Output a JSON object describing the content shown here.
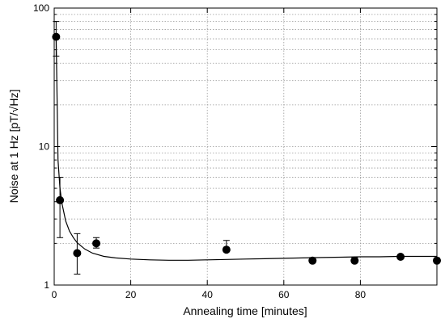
{
  "chart_data": {
    "type": "scatter",
    "title": "",
    "xlabel": "Annealing time [minutes]",
    "ylabel": "Noise at 1 Hz [pT/√Hz]",
    "xlim": [
      0,
      100
    ],
    "ylim": [
      1,
      100
    ],
    "yscale": "log",
    "grid": true,
    "legend": "none",
    "x_ticks": [
      0,
      20,
      40,
      60,
      80
    ],
    "x_tick_labels": [
      "0",
      "20",
      "40",
      "60",
      "80"
    ],
    "y_ticks": [
      1,
      10,
      100
    ],
    "y_tick_labels": [
      "1",
      "10",
      "100"
    ],
    "series": [
      {
        "kind": "points",
        "x": [
          0.5,
          1.5,
          6,
          11,
          45,
          67.5,
          78.5,
          90.5,
          100
        ],
        "y": [
          62,
          4.1,
          1.7,
          2.0,
          1.8,
          1.5,
          1.5,
          1.6,
          1.5
        ],
        "y_err_low": [
          45,
          2.2,
          1.2,
          1.85,
          1.75,
          1.45,
          1.45,
          1.55,
          1.45
        ],
        "y_err_high": [
          80,
          6.0,
          2.35,
          2.2,
          2.1,
          1.58,
          1.58,
          1.65,
          1.57
        ]
      },
      {
        "kind": "fit-line",
        "x": [
          0.5,
          1,
          1.5,
          2,
          3,
          4,
          5,
          6,
          8,
          10,
          13,
          16,
          20,
          25,
          30,
          35,
          40,
          45,
          50,
          55,
          60,
          65,
          70,
          75,
          80,
          85,
          90,
          95,
          100
        ],
        "y": [
          62,
          8.0,
          5.0,
          3.9,
          2.9,
          2.45,
          2.2,
          2.02,
          1.82,
          1.7,
          1.61,
          1.57,
          1.54,
          1.52,
          1.51,
          1.51,
          1.52,
          1.53,
          1.54,
          1.55,
          1.56,
          1.57,
          1.58,
          1.59,
          1.6,
          1.6,
          1.61,
          1.61,
          1.61
        ]
      }
    ],
    "colors": {
      "marker": "#000000",
      "line": "#000000",
      "grid": "#9a9a9a",
      "axis": "#000000"
    }
  }
}
